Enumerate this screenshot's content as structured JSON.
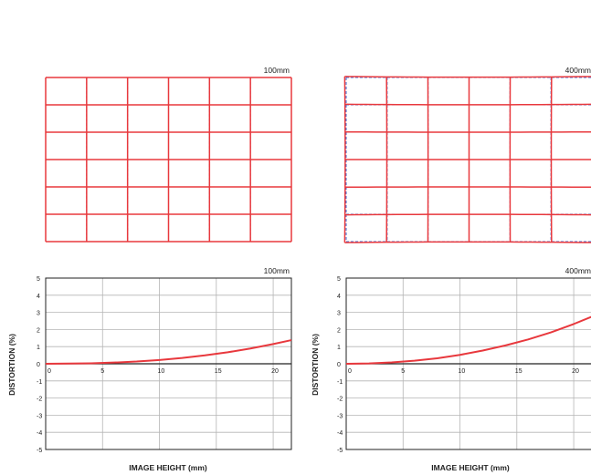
{
  "grids": [
    {
      "label": "100mm",
      "cols": 6,
      "rows": 6,
      "corner_shift": 0.0
    },
    {
      "label": "400mm",
      "cols": 6,
      "rows": 6,
      "corner_shift": 0.012
    }
  ],
  "chart_data": [
    {
      "type": "line",
      "title": "100mm",
      "xlabel": "IMAGE HEIGHT (mm)",
      "ylabel": "DISTORTION (%)",
      "xlim": [
        0,
        21.6
      ],
      "ylim": [
        -5,
        5
      ],
      "xticks": [
        0,
        5,
        10,
        15,
        20
      ],
      "yticks": [
        5,
        4,
        3,
        2,
        1,
        0,
        -1,
        -2,
        -3,
        -4,
        -5
      ],
      "grid": true,
      "series": [
        {
          "color": "#e8383d",
          "x": [
            0,
            2,
            4,
            6,
            8,
            10,
            12,
            14,
            16,
            18,
            20,
            21.6
          ],
          "y": [
            0,
            0.01,
            0.03,
            0.07,
            0.13,
            0.22,
            0.34,
            0.49,
            0.67,
            0.89,
            1.15,
            1.38
          ]
        }
      ]
    },
    {
      "type": "line",
      "title": "400mm",
      "xlabel": "IMAGE HEIGHT (mm)",
      "ylabel": "DISTORTION (%)",
      "xlim": [
        0,
        21.6
      ],
      "ylim": [
        -5,
        5
      ],
      "xticks": [
        0,
        5,
        10,
        15,
        20
      ],
      "yticks": [
        5,
        4,
        3,
        2,
        1,
        0,
        -1,
        -2,
        -3,
        -4,
        -5
      ],
      "grid": true,
      "series": [
        {
          "color": "#e8383d",
          "x": [
            0,
            2,
            4,
            6,
            8,
            10,
            12,
            14,
            16,
            18,
            20,
            21.6
          ],
          "y": [
            0,
            0.02,
            0.08,
            0.18,
            0.32,
            0.52,
            0.77,
            1.07,
            1.42,
            1.83,
            2.32,
            2.75
          ]
        }
      ]
    }
  ]
}
